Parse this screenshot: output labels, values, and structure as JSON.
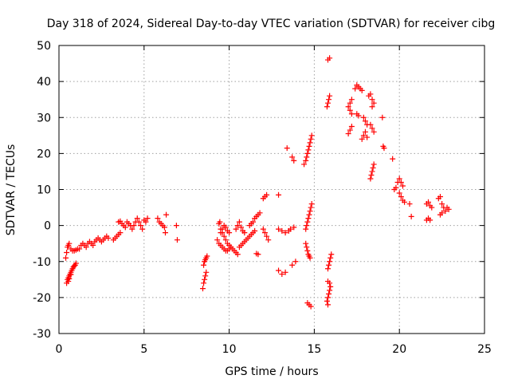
{
  "chart_data": {
    "type": "scatter",
    "title": "Day 318 of 2024, Sidereal Day-to-day VTEC variation (SDTVAR) for receiver cibg",
    "xlabel": "GPS time / hours",
    "ylabel": "SDTVAR / TECUs",
    "xlim": [
      0,
      25
    ],
    "ylim": [
      -30,
      50
    ],
    "xticks": [
      0,
      5,
      10,
      15,
      20,
      25
    ],
    "yticks": [
      -30,
      -20,
      -10,
      0,
      10,
      20,
      30,
      40,
      50
    ],
    "grid": true,
    "marker": "+",
    "marker_color": "#ff0000",
    "series": [
      {
        "name": "SDTVAR",
        "points": [
          [
            0.4,
            -9
          ],
          [
            0.45,
            -7.5
          ],
          [
            0.5,
            -6
          ],
          [
            0.55,
            -5.5
          ],
          [
            0.6,
            -5
          ],
          [
            0.7,
            -6.5
          ],
          [
            0.8,
            -7
          ],
          [
            0.9,
            -7
          ],
          [
            1.0,
            -6.8
          ],
          [
            1.1,
            -6.5
          ],
          [
            0.45,
            -16
          ],
          [
            0.5,
            -15
          ],
          [
            0.55,
            -14.5
          ],
          [
            0.6,
            -14
          ],
          [
            0.65,
            -13.5
          ],
          [
            0.7,
            -13
          ],
          [
            0.75,
            -12.5
          ],
          [
            0.8,
            -12
          ],
          [
            0.85,
            -11.5
          ],
          [
            0.9,
            -11.2
          ],
          [
            0.95,
            -11
          ],
          [
            1.0,
            -10.5
          ],
          [
            0.55,
            -15.5
          ],
          [
            0.6,
            -14.8
          ],
          [
            0.7,
            -13.6
          ],
          [
            1.2,
            -6.5
          ],
          [
            1.3,
            -5.5
          ],
          [
            1.4,
            -5
          ],
          [
            1.5,
            -5.5
          ],
          [
            1.6,
            -6
          ],
          [
            1.7,
            -5
          ],
          [
            1.8,
            -4.5
          ],
          [
            1.9,
            -5
          ],
          [
            2.0,
            -5.5
          ],
          [
            2.1,
            -4.5
          ],
          [
            2.2,
            -4
          ],
          [
            2.3,
            -3.5
          ],
          [
            2.4,
            -4
          ],
          [
            2.5,
            -4.5
          ],
          [
            2.6,
            -4
          ],
          [
            2.7,
            -3.5
          ],
          [
            2.8,
            -3
          ],
          [
            2.9,
            -3.5
          ],
          [
            3.2,
            -4
          ],
          [
            3.3,
            -3.5
          ],
          [
            3.4,
            -3
          ],
          [
            3.5,
            -2.5
          ],
          [
            3.6,
            -2
          ],
          [
            3.5,
            1
          ],
          [
            3.6,
            1.2
          ],
          [
            3.7,
            0.5
          ],
          [
            3.8,
            0
          ],
          [
            3.9,
            -0.5
          ],
          [
            4.0,
            1
          ],
          [
            4.1,
            0.5
          ],
          [
            4.2,
            0
          ],
          [
            4.3,
            -1
          ],
          [
            4.4,
            0
          ],
          [
            4.5,
            1
          ],
          [
            4.6,
            2
          ],
          [
            4.7,
            1
          ],
          [
            4.8,
            0
          ],
          [
            5.0,
            1.5
          ],
          [
            5.1,
            1
          ],
          [
            5.2,
            2
          ],
          [
            4.9,
            -1
          ],
          [
            5.8,
            2
          ],
          [
            5.9,
            1
          ],
          [
            6.0,
            0.5
          ],
          [
            6.1,
            0
          ],
          [
            6.2,
            -0.5
          ],
          [
            6.3,
            3
          ],
          [
            6.25,
            -2
          ],
          [
            6.9,
            0
          ],
          [
            6.95,
            -4
          ],
          [
            8.45,
            -17.5
          ],
          [
            8.5,
            -16
          ],
          [
            8.55,
            -15
          ],
          [
            8.6,
            -14
          ],
          [
            8.65,
            -13
          ],
          [
            8.5,
            -11
          ],
          [
            8.55,
            -10
          ],
          [
            8.6,
            -9.5
          ],
          [
            8.65,
            -9
          ],
          [
            8.7,
            -8.5
          ],
          [
            9.4,
            0.5
          ],
          [
            9.45,
            1
          ],
          [
            9.5,
            -1
          ],
          [
            9.6,
            -2
          ],
          [
            9.7,
            -3
          ],
          [
            9.8,
            -4
          ],
          [
            9.9,
            -5
          ],
          [
            10.0,
            -5.5
          ],
          [
            10.1,
            -6
          ],
          [
            10.2,
            -6.5
          ],
          [
            10.3,
            -7
          ],
          [
            10.4,
            -7.5
          ],
          [
            10.5,
            -8
          ],
          [
            9.3,
            -4
          ],
          [
            9.4,
            -5
          ],
          [
            9.5,
            -5.5
          ],
          [
            9.6,
            -6
          ],
          [
            9.7,
            -6.5
          ],
          [
            9.8,
            -7
          ],
          [
            9.9,
            -7
          ],
          [
            10.0,
            -6.5
          ],
          [
            10.1,
            -6
          ],
          [
            9.5,
            -2
          ],
          [
            9.6,
            -1
          ],
          [
            9.7,
            0
          ],
          [
            9.8,
            -0.5
          ],
          [
            9.9,
            -1.5
          ],
          [
            10.0,
            -2
          ],
          [
            10.4,
            -1
          ],
          [
            10.5,
            0
          ],
          [
            10.6,
            1
          ],
          [
            10.7,
            -0.5
          ],
          [
            10.8,
            -1.5
          ],
          [
            10.9,
            -2
          ],
          [
            10.6,
            -6
          ],
          [
            10.7,
            -5.5
          ],
          [
            10.8,
            -5
          ],
          [
            10.9,
            -4.5
          ],
          [
            11.0,
            -4
          ],
          [
            11.1,
            -3.5
          ],
          [
            11.2,
            -3
          ],
          [
            11.3,
            -2.5
          ],
          [
            11.4,
            -2
          ],
          [
            11.5,
            -1.5
          ],
          [
            11.2,
            0
          ],
          [
            11.3,
            0.5
          ],
          [
            11.4,
            1
          ],
          [
            11.5,
            2
          ],
          [
            11.6,
            2.5
          ],
          [
            11.7,
            3
          ],
          [
            11.8,
            3.5
          ],
          [
            11.6,
            -7.8
          ],
          [
            11.7,
            -8
          ],
          [
            12.0,
            -1
          ],
          [
            12.1,
            -2
          ],
          [
            12.2,
            -3
          ],
          [
            12.3,
            -4
          ],
          [
            12.0,
            7.5
          ],
          [
            12.1,
            8
          ],
          [
            12.2,
            8.5
          ],
          [
            12.9,
            8.5
          ],
          [
            12.9,
            -12.5
          ],
          [
            13.1,
            -13.5
          ],
          [
            13.3,
            -13
          ],
          [
            12.9,
            -1
          ],
          [
            13.1,
            -1.5
          ],
          [
            13.3,
            -2
          ],
          [
            13.5,
            -1.5
          ],
          [
            13.7,
            -11
          ],
          [
            13.9,
            -10
          ],
          [
            13.4,
            21.5
          ],
          [
            13.7,
            19
          ],
          [
            13.8,
            18
          ],
          [
            13.6,
            -1
          ],
          [
            13.8,
            -0.5
          ],
          [
            14.4,
            17
          ],
          [
            14.5,
            18
          ],
          [
            14.55,
            19
          ],
          [
            14.6,
            20
          ],
          [
            14.65,
            21
          ],
          [
            14.7,
            22
          ],
          [
            14.75,
            23
          ],
          [
            14.8,
            24
          ],
          [
            14.85,
            25
          ],
          [
            14.5,
            -1
          ],
          [
            14.55,
            0
          ],
          [
            14.6,
            1
          ],
          [
            14.65,
            2
          ],
          [
            14.7,
            3
          ],
          [
            14.75,
            4
          ],
          [
            14.8,
            5
          ],
          [
            14.85,
            6
          ],
          [
            14.5,
            -5
          ],
          [
            14.55,
            -6
          ],
          [
            14.6,
            -7
          ],
          [
            14.65,
            -8
          ],
          [
            14.7,
            -8.5
          ],
          [
            14.75,
            -9
          ],
          [
            14.6,
            -21.5
          ],
          [
            14.7,
            -22
          ],
          [
            14.8,
            -22.5
          ],
          [
            15.8,
            46
          ],
          [
            15.9,
            46.5
          ],
          [
            15.75,
            33
          ],
          [
            15.8,
            34
          ],
          [
            15.85,
            35
          ],
          [
            15.9,
            36
          ],
          [
            15.8,
            -15.5
          ],
          [
            15.9,
            -16
          ],
          [
            15.75,
            -21
          ],
          [
            15.8,
            -20
          ],
          [
            15.85,
            -19
          ],
          [
            15.9,
            -18
          ],
          [
            15.95,
            -17
          ],
          [
            15.8,
            -12
          ],
          [
            15.85,
            -11
          ],
          [
            15.9,
            -10
          ],
          [
            15.95,
            -9
          ],
          [
            16.0,
            -8
          ],
          [
            15.8,
            -22
          ],
          [
            17.0,
            25.5
          ],
          [
            17.1,
            26.5
          ],
          [
            17.2,
            27.5
          ],
          [
            17.0,
            33
          ],
          [
            17.1,
            34
          ],
          [
            17.2,
            35
          ],
          [
            17.1,
            32
          ],
          [
            17.2,
            31
          ],
          [
            17.4,
            38
          ],
          [
            17.5,
            39
          ],
          [
            17.6,
            38.5
          ],
          [
            17.7,
            38
          ],
          [
            17.8,
            37.5
          ],
          [
            17.5,
            31
          ],
          [
            17.6,
            30.5
          ],
          [
            17.8,
            24
          ],
          [
            17.9,
            25
          ],
          [
            18.0,
            26
          ],
          [
            18.1,
            24.5
          ],
          [
            17.9,
            30
          ],
          [
            18.0,
            29
          ],
          [
            18.1,
            28
          ],
          [
            18.2,
            36
          ],
          [
            18.3,
            36.5
          ],
          [
            18.4,
            35
          ],
          [
            18.5,
            34
          ],
          [
            18.4,
            33
          ],
          [
            18.3,
            28
          ],
          [
            18.4,
            27
          ],
          [
            18.5,
            26
          ],
          [
            18.3,
            13
          ],
          [
            18.35,
            14
          ],
          [
            18.4,
            15
          ],
          [
            18.45,
            16
          ],
          [
            18.5,
            17
          ],
          [
            19.0,
            30
          ],
          [
            19.05,
            22
          ],
          [
            19.1,
            21.5
          ],
          [
            19.6,
            18.5
          ],
          [
            19.7,
            10
          ],
          [
            19.8,
            10.5
          ],
          [
            19.9,
            12
          ],
          [
            20.0,
            13
          ],
          [
            20.1,
            12
          ],
          [
            20.2,
            11
          ],
          [
            20.0,
            9
          ],
          [
            20.1,
            8
          ],
          [
            20.2,
            7
          ],
          [
            20.3,
            6.5
          ],
          [
            20.6,
            6
          ],
          [
            20.7,
            2.5
          ],
          [
            21.6,
            1.5
          ],
          [
            21.7,
            2
          ],
          [
            21.8,
            1.5
          ],
          [
            21.6,
            6
          ],
          [
            21.7,
            6.5
          ],
          [
            21.8,
            5.5
          ],
          [
            21.9,
            5
          ],
          [
            22.3,
            7.5
          ],
          [
            22.4,
            8
          ],
          [
            22.5,
            6
          ],
          [
            22.6,
            5
          ],
          [
            22.7,
            4
          ],
          [
            22.8,
            5
          ],
          [
            22.9,
            4.5
          ],
          [
            22.4,
            3
          ],
          [
            22.5,
            3.5
          ]
        ]
      }
    ]
  }
}
